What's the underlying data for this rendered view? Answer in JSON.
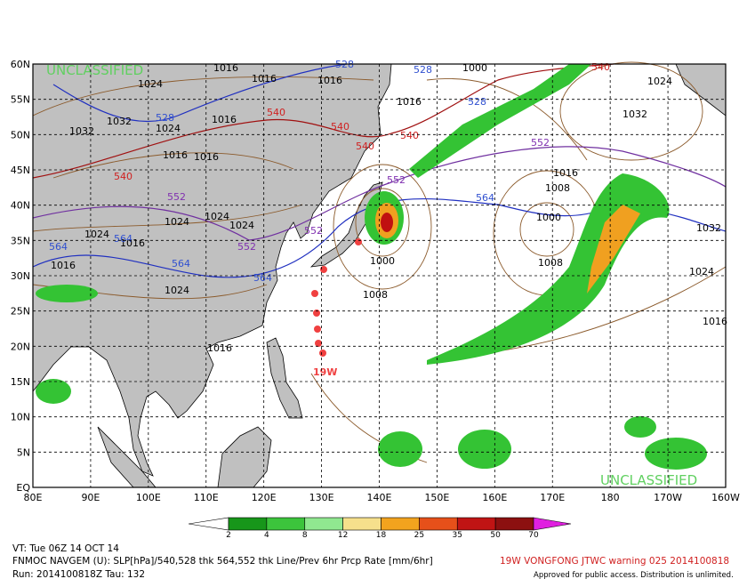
{
  "map": {
    "classification_top": "UNCLASSIFIED",
    "classification_bottom": "UNCLASSIFIED",
    "lat_labels": [
      "60N",
      "55N",
      "50N",
      "45N",
      "40N",
      "35N",
      "30N",
      "25N",
      "20N",
      "15N",
      "10N",
      "5N",
      "EQ"
    ],
    "lon_labels": [
      "80E",
      "90E",
      "100E",
      "110E",
      "120E",
      "130E",
      "140E",
      "150E",
      "160E",
      "170E",
      "180",
      "170W",
      "160W"
    ],
    "storm_label": "19W",
    "contour_labels": [
      "1016",
      "1024",
      "1016",
      "1016",
      "1032",
      "1024",
      "1032",
      "1016",
      "1016",
      "1016",
      "1024",
      "1024",
      "1024",
      "1016",
      "1024",
      "1016",
      "1024",
      "1016",
      "1000",
      "1008",
      "1016",
      "1000",
      "1008",
      "1016",
      "1032",
      "1024",
      "1016",
      "1000",
      "1024",
      "1032",
      "1008"
    ],
    "thickness_labels": [
      "528",
      "528",
      "528",
      "528",
      "540",
      "540",
      "540",
      "540",
      "540",
      "540",
      "552",
      "552",
      "552",
      "552",
      "552",
      "564",
      "564",
      "564",
      "564",
      "564"
    ],
    "colorbar_labels": [
      "2",
      "4",
      "8",
      "12",
      "18",
      "25",
      "35",
      "50",
      "70"
    ]
  },
  "footer": {
    "valid_time": "VT: Tue 06Z 14 OCT 14",
    "description": "FNMOC NAVGEM (U): SLP[hPa]/540,528 thk 564,552 thk Line/Prev 6hr Prcp Rate [mm/6hr]",
    "run": "Run: 2014100818Z Tau: 132",
    "warning": "19W VONGFONG JTWC warning 025 2014100818",
    "release": "Approved for public access. Distribution is unlimited."
  }
}
